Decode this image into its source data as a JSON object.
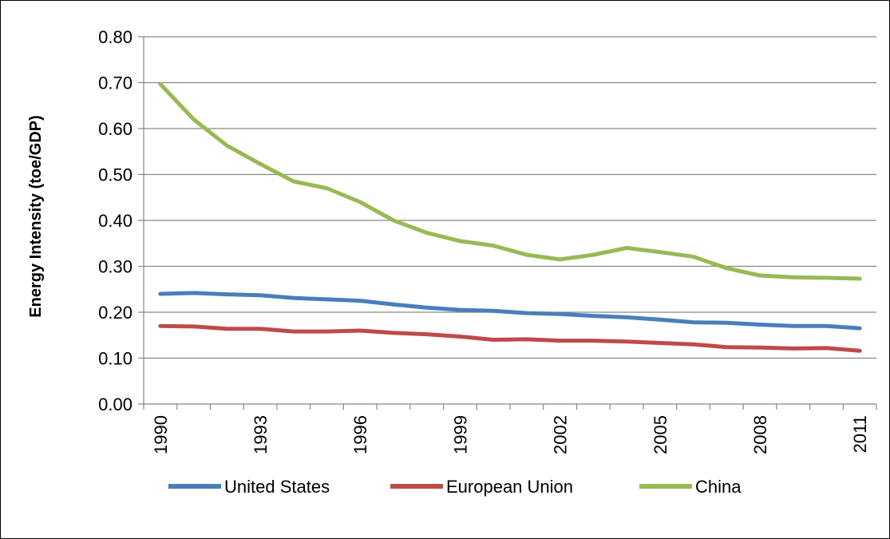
{
  "chart_data": {
    "type": "line",
    "title": "",
    "xlabel": "",
    "ylabel": "Energy Intensity (toe/GDP)",
    "x": [
      1990,
      1991,
      1992,
      1993,
      1994,
      1995,
      1996,
      1997,
      1998,
      1999,
      2000,
      2001,
      2002,
      2003,
      2004,
      2005,
      2006,
      2007,
      2008,
      2009,
      2010,
      2011
    ],
    "x_tick_labels": [
      "1990",
      "1993",
      "1996",
      "1999",
      "2002",
      "2005",
      "2008",
      "2011"
    ],
    "y_tick_labels": [
      "0.00",
      "0.10",
      "0.20",
      "0.30",
      "0.40",
      "0.50",
      "0.60",
      "0.70",
      "0.80"
    ],
    "ylim": [
      0,
      0.8
    ],
    "grid": "horizontal",
    "legend_position": "bottom",
    "series": [
      {
        "name": "United States",
        "color": "#4a7ebb",
        "values": [
          0.24,
          0.242,
          0.239,
          0.237,
          0.231,
          0.228,
          0.225,
          0.217,
          0.21,
          0.205,
          0.203,
          0.198,
          0.196,
          0.192,
          0.189,
          0.184,
          0.178,
          0.177,
          0.173,
          0.17,
          0.17,
          0.165
        ]
      },
      {
        "name": "European Union",
        "color": "#be4b48",
        "values": [
          0.17,
          0.169,
          0.164,
          0.164,
          0.158,
          0.158,
          0.16,
          0.155,
          0.152,
          0.147,
          0.14,
          0.141,
          0.138,
          0.138,
          0.136,
          0.133,
          0.13,
          0.124,
          0.123,
          0.121,
          0.122,
          0.116
        ]
      },
      {
        "name": "China",
        "color": "#98b954",
        "values": [
          0.697,
          0.62,
          0.563,
          0.523,
          0.485,
          0.47,
          0.44,
          0.4,
          0.373,
          0.355,
          0.345,
          0.325,
          0.315,
          0.325,
          0.34,
          0.331,
          0.321,
          0.296,
          0.28,
          0.276,
          0.275,
          0.273
        ]
      }
    ]
  }
}
